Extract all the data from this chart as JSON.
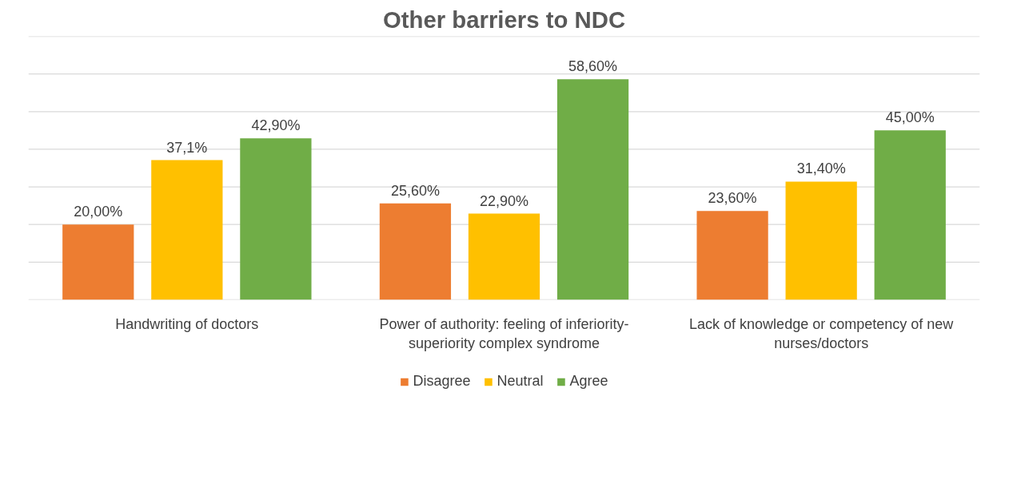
{
  "chart_data": {
    "type": "bar",
    "title": "Other barriers to NDC",
    "categories": [
      "Handwriting of doctors",
      "Power of authority: feeling of inferiority-superiority complex syndrome",
      "Lack of knowledge or competency of new nurses/doctors"
    ],
    "series": [
      {
        "name": "Disagree",
        "color": "#ed7d31",
        "values": [
          20.0,
          25.6,
          23.6
        ],
        "value_labels": [
          "20,00%",
          "25,60%",
          "23,60%"
        ]
      },
      {
        "name": "Neutral",
        "color": "#ffc000",
        "values": [
          37.1,
          22.9,
          31.4
        ],
        "value_labels": [
          "37,1%",
          "22,90%",
          "31,40%"
        ]
      },
      {
        "name": "Agree",
        "color": "#70ad47",
        "values": [
          42.9,
          58.6,
          45.0
        ],
        "value_labels": [
          "42,90%",
          "58,60%",
          "45,00%"
        ]
      }
    ],
    "ylim": [
      0,
      70
    ],
    "yticks": [
      {
        "value": 0,
        "label": null
      },
      {
        "value": 10,
        "label": null
      },
      {
        "value": 20,
        "label": null
      },
      {
        "value": 30,
        "label": null
      },
      {
        "value": 40,
        "label": null
      },
      {
        "value": 50,
        "label": null
      },
      {
        "value": 60,
        "label": null
      },
      {
        "value": 70,
        "label": null
      }
    ],
    "tick_labels": "x",
    "grid": "y",
    "legend": "bottom"
  }
}
